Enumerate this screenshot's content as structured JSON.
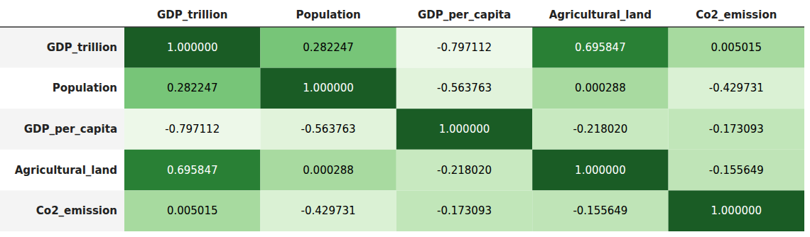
{
  "chart_data": {
    "type": "heatmap",
    "categories": [
      "GDP_trillion",
      "Population",
      "GDP_per_capita",
      "Agricultural_land",
      "Co2_emission"
    ],
    "values": [
      [
        1.0,
        0.282247,
        -0.797112,
        0.695847,
        0.005015
      ],
      [
        0.282247,
        1.0,
        -0.563763,
        0.000288,
        -0.429731
      ],
      [
        -0.797112,
        -0.563763,
        1.0,
        -0.21802,
        -0.173093
      ],
      [
        0.695847,
        0.000288,
        -0.21802,
        1.0,
        -0.155649
      ],
      [
        0.005015,
        -0.429731,
        -0.173093,
        -0.155649,
        1.0
      ]
    ],
    "value_labels": [
      [
        "1.000000",
        "0.282247",
        "-0.797112",
        "0.695847",
        "0.005015"
      ],
      [
        "0.282247",
        "1.000000",
        "-0.563763",
        "0.000288",
        "-0.429731"
      ],
      [
        "-0.797112",
        "-0.563763",
        "1.000000",
        "-0.218020",
        "-0.173093"
      ],
      [
        "0.695847",
        "0.000288",
        "-0.218020",
        "1.000000",
        "-0.155649"
      ],
      [
        "0.005015",
        "-0.429731",
        "-0.173093",
        "-0.155649",
        "1.000000"
      ]
    ],
    "zlim": [
      -1.0,
      1.0
    ],
    "data_labels": true
  }
}
